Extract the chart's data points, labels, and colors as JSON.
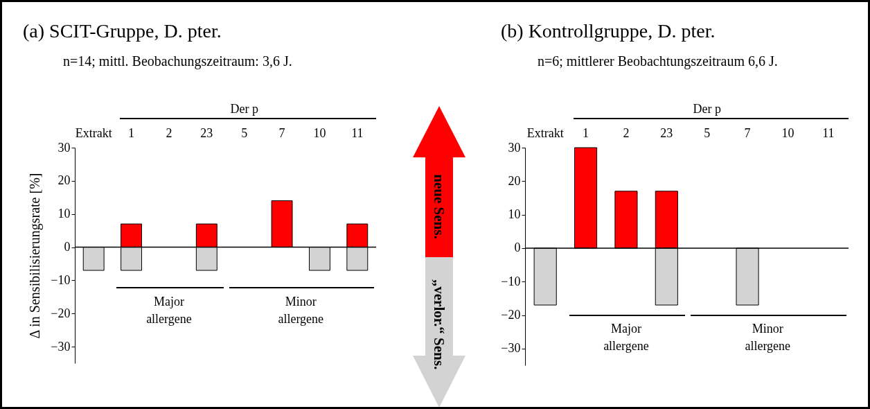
{
  "chart_data": [
    {
      "type": "bar",
      "title": "(a) SCIT-Gruppe, D. pter.",
      "subtitle": "n=14; mittl. Beobachungszeitraum: 3,6 J.",
      "ylabel": "Δ in Sensibilisierungsrate [%]",
      "categories": [
        "Extrakt",
        "1",
        "2",
        "23",
        "5",
        "7",
        "10",
        "11"
      ],
      "series": [
        {
          "color": "#ff0000",
          "values": [
            null,
            7,
            null,
            7,
            null,
            14,
            null,
            7
          ]
        },
        {
          "color": "#d3d3d3",
          "values": [
            -7,
            -7,
            null,
            -7,
            null,
            null,
            -7,
            -7
          ]
        }
      ],
      "ylim": [
        -35,
        30
      ],
      "yticks": [
        -30,
        -20,
        -10,
        0,
        10,
        20,
        30
      ],
      "ref_lines": [
        {
          "axis": "y",
          "value": 0
        }
      ],
      "annotations": [
        "Der p",
        "Major allergene",
        "Minor allergene"
      ]
    },
    {
      "type": "other",
      "annotations": [
        "neue Sens.",
        "„verlor.“ Sens."
      ]
    },
    {
      "type": "bar",
      "title": "(b) Kontrollgruppe, D. pter.",
      "subtitle": "n=6; mittlerer Beobachtungszeitraum  6,6 J.",
      "categories": [
        "Extrakt",
        "1",
        "2",
        "23",
        "5",
        "7",
        "10",
        "11"
      ],
      "series": [
        {
          "color": "#ff0000",
          "values": [
            null,
            30,
            17,
            17,
            null,
            null,
            null,
            null
          ]
        },
        {
          "color": "#d3d3d3",
          "values": [
            -17,
            null,
            null,
            -17,
            null,
            -17,
            null,
            null
          ]
        }
      ],
      "ylim": [
        -35,
        30
      ],
      "yticks": [
        -30,
        -20,
        -10,
        0,
        10,
        20,
        30
      ],
      "ref_lines": [
        {
          "axis": "y",
          "value": 0
        }
      ],
      "annotations": [
        "Der p",
        "Major allergene",
        "Minor allergene"
      ]
    }
  ]
}
